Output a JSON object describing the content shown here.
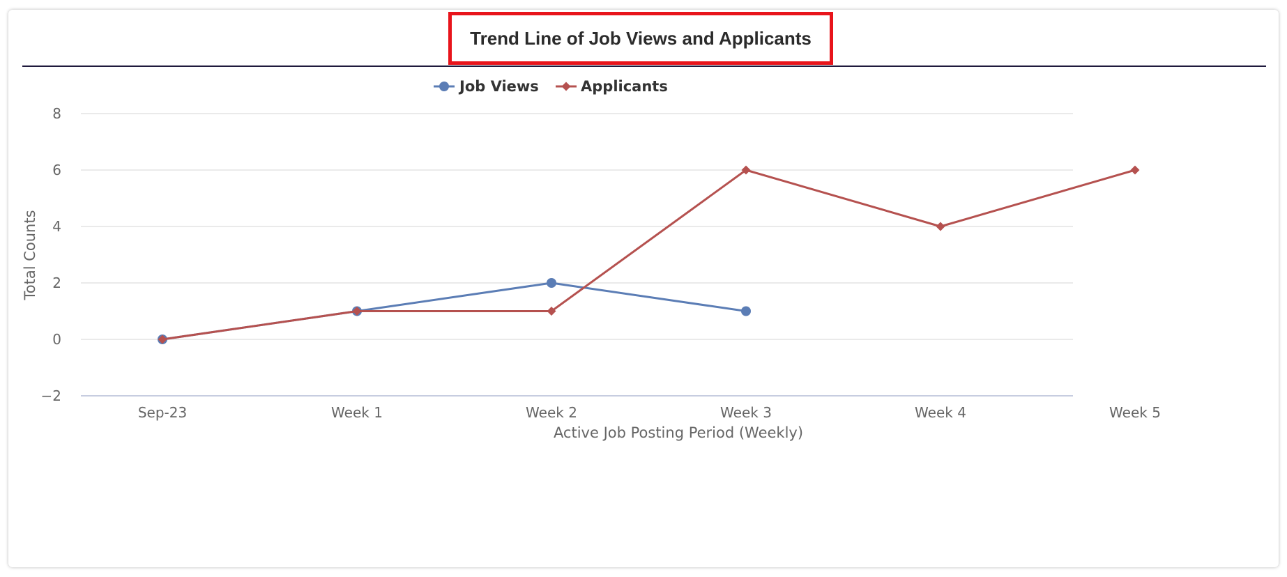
{
  "card": {
    "title": "Trend Line of Job Views and Applicants"
  },
  "chart_data": {
    "type": "line",
    "title": "Trend Line of Job Views and Applicants",
    "xlabel": "Active Job Posting Period (Weekly)",
    "ylabel": "Total Counts",
    "categories": [
      "Sep-23",
      "Week 1",
      "Week 2",
      "Week 3",
      "Week 4",
      "Week 5"
    ],
    "ylim": [
      -2,
      8
    ],
    "yticks": [
      "−2",
      "0",
      "2",
      "4",
      "6",
      "8"
    ],
    "ytick_values": [
      -2,
      0,
      2,
      4,
      6,
      8
    ],
    "grid": true,
    "legend_position": "top-center",
    "series": [
      {
        "name": "Job Views",
        "values": [
          0,
          1,
          2,
          1,
          null,
          null
        ],
        "color": "#5b7db5",
        "marker": "circle"
      },
      {
        "name": "Applicants",
        "values": [
          0,
          1,
          1,
          6,
          4,
          6
        ],
        "color": "#b5514f",
        "marker": "diamond"
      }
    ]
  }
}
